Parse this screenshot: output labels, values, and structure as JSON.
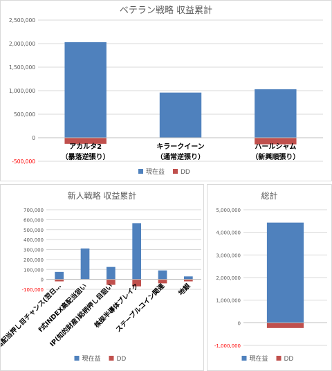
{
  "colors": {
    "current": "#4f81bd",
    "dd": "#c0504d",
    "axis_text": "#595959",
    "neg_text": "#ff0000",
    "grid": "#d9d9d9",
    "title": "#595959"
  },
  "chart_data": [
    {
      "type": "bar",
      "title": "ベテラン戦略 収益累計",
      "categories": [
        [
          "アカルタ2",
          "（暴落逆張り）"
        ],
        [
          "キラークイーン",
          "（通常逆張り）"
        ],
        [
          "ハールシャム",
          "（新興順張り）"
        ]
      ],
      "series": [
        {
          "name": "現在益",
          "values": [
            2030000,
            960000,
            1030000
          ]
        },
        {
          "name": "DD",
          "values": [
            -130000,
            0,
            -140000
          ]
        }
      ],
      "ylim": [
        -500000,
        2500000
      ],
      "yticks": [
        "-500,000",
        "0",
        "500,000",
        "1,000,000",
        "1,500,000",
        "2,000,000",
        "2,500,000"
      ],
      "ytick_values": [
        -500000,
        0,
        500000,
        1000000,
        1500000,
        2000000,
        2500000
      ],
      "legend": "bottom",
      "grid": true
    },
    {
      "type": "bar",
      "title": "新人戦略 収益累計",
      "categories": [
        "高配当押し目チャンス(翌日…",
        "f式INDEX高配当狙い",
        "IP(知的財産)銘柄押し目狙い",
        "株探半導体ブレイク",
        "ステーブルコイン関連",
        "地銀"
      ],
      "series": [
        {
          "name": "現在益",
          "values": [
            75000,
            310000,
            125000,
            565000,
            90000,
            30000
          ]
        },
        {
          "name": "DD",
          "values": [
            -20000,
            0,
            -55000,
            -70000,
            -40000,
            -20000
          ]
        }
      ],
      "ylim": [
        -100000,
        700000
      ],
      "yticks": [
        "-100,000",
        "0",
        "100,000",
        "200,000",
        "300,000",
        "400,000",
        "500,000",
        "600,000",
        "700,000"
      ],
      "ytick_values": [
        -100000,
        0,
        100000,
        200000,
        300000,
        400000,
        500000,
        600000,
        700000
      ],
      "legend": "bottom",
      "grid": true
    },
    {
      "type": "bar",
      "title": "総計",
      "categories": [
        ""
      ],
      "series": [
        {
          "name": "現在益",
          "values": [
            4430000
          ]
        },
        {
          "name": "DD",
          "values": [
            -230000
          ]
        }
      ],
      "ylim": [
        -1000000,
        5000000
      ],
      "yticks": [
        "-1,000,000",
        "0",
        "1,000,000",
        "2,000,000",
        "3,000,000",
        "4,000,000",
        "5,000,000"
      ],
      "ytick_values": [
        -1000000,
        0,
        1000000,
        2000000,
        3000000,
        4000000,
        5000000
      ],
      "legend": "bottom",
      "grid": true
    }
  ]
}
